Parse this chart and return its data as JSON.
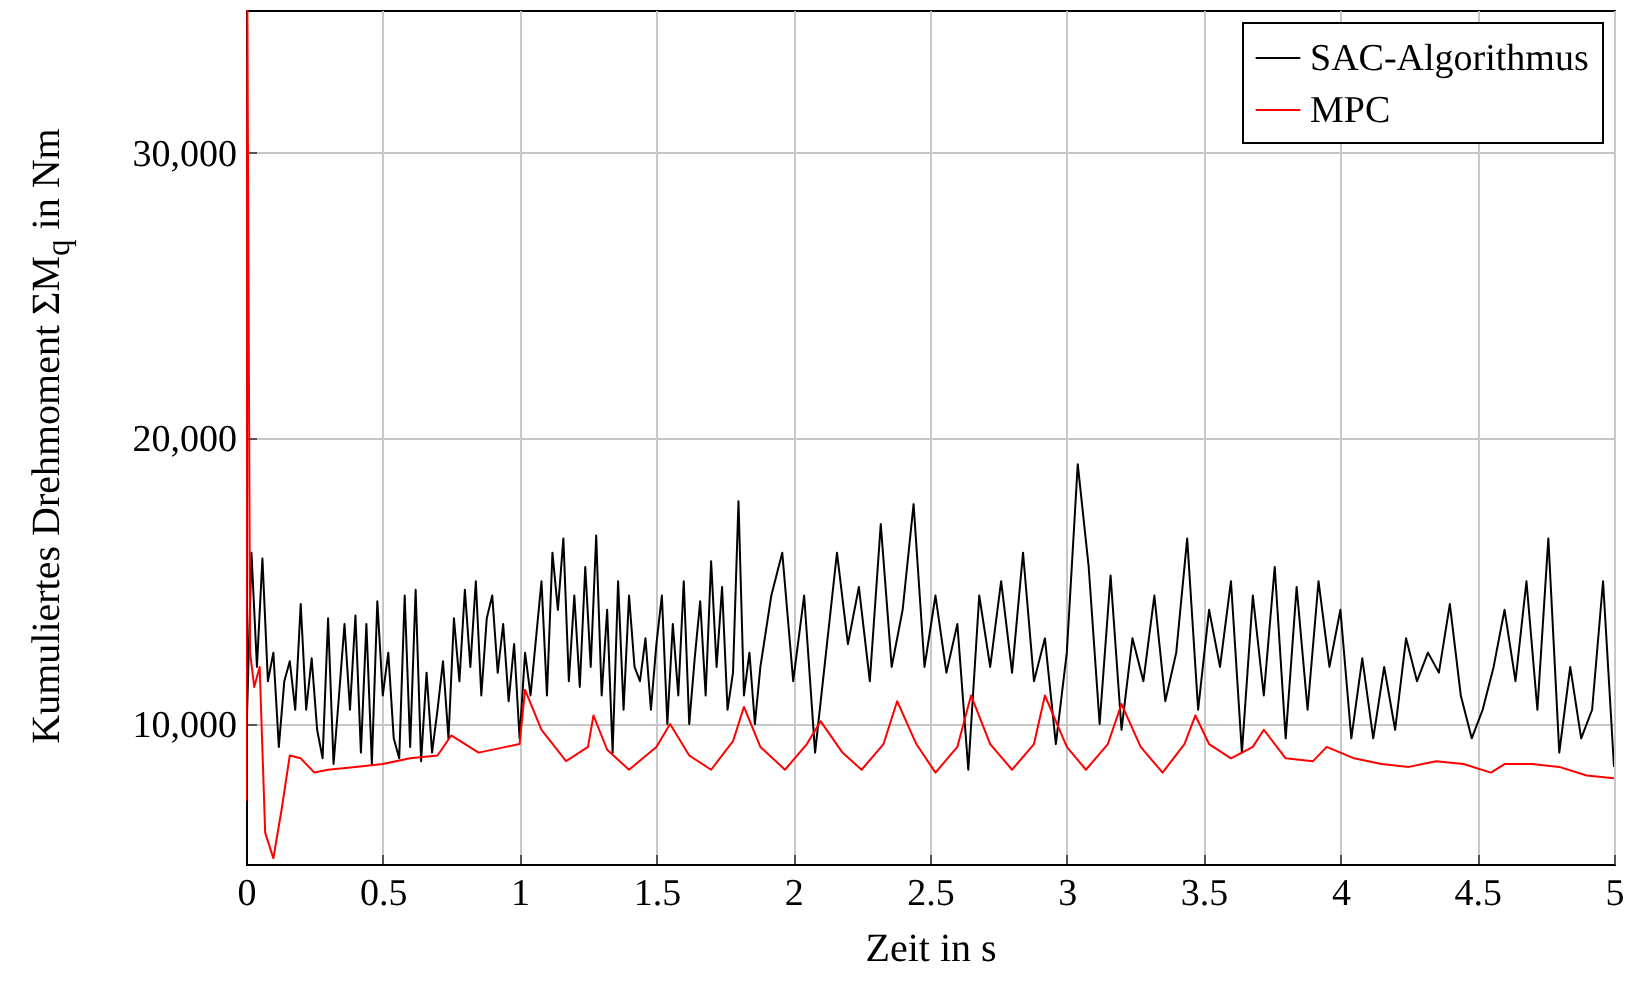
{
  "chart_data": {
    "type": "line",
    "xlabel": "Zeit in s",
    "ylabel": "Kumuliertes Drehmoment ΣM$_{q}$ in Nm",
    "xlim": [
      0,
      5
    ],
    "xticks": [
      0,
      0.5,
      1,
      1.5,
      2,
      2.5,
      3,
      3.5,
      4,
      4.5,
      5
    ],
    "ylim": [
      5100,
      35000
    ],
    "yticks": [
      {
        "value": 10000,
        "label": "10,000"
      },
      {
        "value": 20000,
        "label": "20,000"
      },
      {
        "value": 30000,
        "label": "30,000"
      }
    ],
    "grid": true,
    "legend": "top right",
    "marker": "none",
    "line_style": "solid",
    "series": [
      {
        "name": "SAC-Algorithmus",
        "color": "#000000",
        "x": [
          0,
          0.02,
          0.04,
          0.06,
          0.08,
          0.1,
          0.12,
          0.14,
          0.16,
          0.18,
          0.2,
          0.22,
          0.24,
          0.26,
          0.28,
          0.3,
          0.32,
          0.34,
          0.36,
          0.38,
          0.4,
          0.42,
          0.44,
          0.46,
          0.48,
          0.5,
          0.52,
          0.54,
          0.56,
          0.58,
          0.6,
          0.62,
          0.64,
          0.66,
          0.68,
          0.7,
          0.72,
          0.74,
          0.76,
          0.78,
          0.8,
          0.82,
          0.84,
          0.86,
          0.88,
          0.9,
          0.92,
          0.94,
          0.96,
          0.98,
          1,
          1.02,
          1.04,
          1.06,
          1.08,
          1.1,
          1.12,
          1.14,
          1.16,
          1.18,
          1.2,
          1.22,
          1.24,
          1.26,
          1.28,
          1.3,
          1.32,
          1.34,
          1.36,
          1.38,
          1.4,
          1.42,
          1.44,
          1.46,
          1.48,
          1.5,
          1.52,
          1.54,
          1.56,
          1.58,
          1.6,
          1.62,
          1.64,
          1.66,
          1.68,
          1.7,
          1.72,
          1.74,
          1.76,
          1.78,
          1.8,
          1.82,
          1.84,
          1.86,
          1.88,
          1.92,
          1.96,
          2,
          2.04,
          2.08,
          2.12,
          2.16,
          2.2,
          2.24,
          2.28,
          2.32,
          2.36,
          2.4,
          2.44,
          2.48,
          2.52,
          2.56,
          2.6,
          2.64,
          2.68,
          2.72,
          2.76,
          2.8,
          2.84,
          2.88,
          2.92,
          2.96,
          3,
          3.04,
          3.08,
          3.12,
          3.16,
          3.2,
          3.24,
          3.28,
          3.32,
          3.36,
          3.4,
          3.44,
          3.48,
          3.52,
          3.56,
          3.6,
          3.64,
          3.68,
          3.72,
          3.76,
          3.8,
          3.84,
          3.88,
          3.92,
          3.96,
          4,
          4.04,
          4.08,
          4.12,
          4.16,
          4.2,
          4.24,
          4.28,
          4.32,
          4.36,
          4.4,
          4.44,
          4.48,
          4.52,
          4.56,
          4.6,
          4.64,
          4.68,
          4.72,
          4.76,
          4.8,
          4.84,
          4.88,
          4.92,
          4.96,
          5
        ],
        "values": [
          9000,
          16000,
          12000,
          15800,
          11500,
          12500,
          9200,
          11500,
          12200,
          10500,
          14200,
          10500,
          12300,
          9800,
          8800,
          13700,
          8600,
          11000,
          13500,
          10500,
          13800,
          9000,
          13500,
          8600,
          14300,
          11000,
          12500,
          9500,
          8800,
          14500,
          9200,
          14700,
          8700,
          11800,
          9000,
          10500,
          12200,
          9500,
          13700,
          11500,
          14700,
          12000,
          15000,
          11000,
          13700,
          14500,
          11800,
          13500,
          10800,
          12800,
          9500,
          12500,
          11000,
          13000,
          15000,
          11000,
          16000,
          14000,
          16500,
          11500,
          14500,
          11300,
          15500,
          12000,
          16600,
          11000,
          14000,
          9000,
          15000,
          10500,
          14500,
          12000,
          11500,
          13000,
          10500,
          12800,
          14500,
          10000,
          13500,
          11000,
          15000,
          10000,
          12300,
          14300,
          11000,
          15700,
          12000,
          14800,
          10500,
          11800,
          17800,
          11000,
          12500,
          10000,
          12000,
          14500,
          16000,
          11500,
          14500,
          9000,
          12500,
          16000,
          12800,
          14800,
          11500,
          17000,
          12000,
          14000,
          17700,
          12000,
          14500,
          11800,
          13500,
          8400,
          14500,
          12000,
          15000,
          11800,
          16000,
          11500,
          13000,
          9300,
          12500,
          19100,
          15500,
          10000,
          15200,
          9800,
          13000,
          11500,
          14500,
          10800,
          12500,
          16500,
          10500,
          14000,
          12000,
          15000,
          9000,
          14500,
          11000,
          15500,
          9500,
          14800,
          10500,
          15000,
          12000,
          14000,
          9500,
          12300,
          9500,
          12000,
          9800,
          13000,
          11500,
          12500,
          11800,
          14200,
          11000,
          9500,
          10500,
          12000,
          14000,
          11500,
          15000,
          10500,
          16500,
          9000,
          12000,
          9500,
          10500,
          15000,
          8500
        ]
      },
      {
        "name": "MPC",
        "color": "#ff0000",
        "x": [
          0,
          0.005,
          0.015,
          0.03,
          0.05,
          0.07,
          0.1,
          0.13,
          0.16,
          0.2,
          0.25,
          0.3,
          0.4,
          0.5,
          0.6,
          0.7,
          0.75,
          0.85,
          0.95,
          1,
          1.02,
          1.08,
          1.17,
          1.25,
          1.27,
          1.32,
          1.4,
          1.5,
          1.55,
          1.62,
          1.7,
          1.78,
          1.82,
          1.88,
          1.97,
          2.05,
          2.1,
          2.18,
          2.25,
          2.33,
          2.38,
          2.45,
          2.52,
          2.6,
          2.65,
          2.72,
          2.8,
          2.88,
          2.92,
          3,
          3.07,
          3.15,
          3.2,
          3.27,
          3.35,
          3.43,
          3.47,
          3.52,
          3.6,
          3.68,
          3.72,
          3.8,
          3.9,
          3.95,
          4.05,
          4.15,
          4.25,
          4.35,
          4.45,
          4.55,
          4.6,
          4.7,
          4.8,
          4.9,
          5
        ],
        "values": [
          7300,
          35000,
          12500,
          11300,
          12000,
          6200,
          5300,
          7000,
          8900,
          8800,
          8300,
          8400,
          8500,
          8600,
          8800,
          8900,
          9600,
          9000,
          9200,
          9300,
          11200,
          9800,
          8700,
          9200,
          10300,
          9100,
          8400,
          9200,
          10000,
          8900,
          8400,
          9400,
          10600,
          9200,
          8400,
          9300,
          10100,
          9000,
          8400,
          9300,
          10800,
          9300,
          8300,
          9200,
          11000,
          9300,
          8400,
          9300,
          11000,
          9200,
          8400,
          9300,
          10700,
          9200,
          8300,
          9300,
          10300,
          9300,
          8800,
          9200,
          9800,
          8800,
          8700,
          9200,
          8800,
          8600,
          8500,
          8700,
          8600,
          8300,
          8600,
          8600,
          8500,
          8200,
          8100
        ]
      }
    ]
  }
}
